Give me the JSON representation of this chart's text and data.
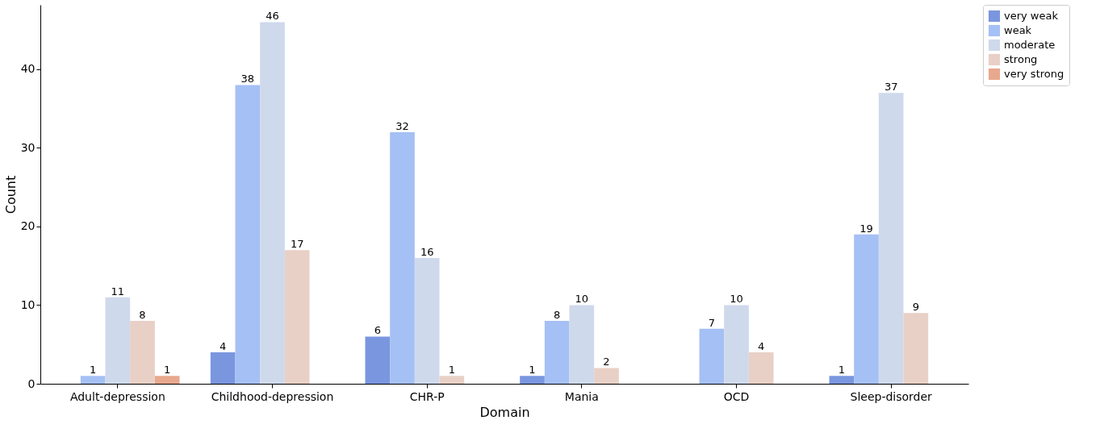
{
  "chart_data": {
    "type": "bar",
    "xlabel": "Domain",
    "ylabel": "Count",
    "categories": [
      "Adult-depression",
      "Childhood-depression",
      "CHR-P",
      "Mania",
      "OCD",
      "Sleep-disorder"
    ],
    "series": [
      {
        "name": "very weak",
        "color": "#7a96de",
        "values": [
          null,
          4,
          6,
          1,
          null,
          1
        ]
      },
      {
        "name": "weak",
        "color": "#a5c0f4",
        "values": [
          1,
          38,
          32,
          8,
          7,
          19
        ]
      },
      {
        "name": "moderate",
        "color": "#cfd9ec",
        "values": [
          11,
          46,
          16,
          10,
          10,
          37
        ]
      },
      {
        "name": "strong",
        "color": "#e8d0c6",
        "values": [
          8,
          17,
          1,
          2,
          4,
          9
        ]
      },
      {
        "name": "very strong",
        "color": "#e8a88e",
        "values": [
          1,
          null,
          null,
          null,
          null,
          null
        ]
      }
    ],
    "ylim": [
      0,
      48.2
    ],
    "yticks": [
      0,
      10,
      20,
      30,
      40
    ],
    "grid": false,
    "legend": "right",
    "data_labels": true
  }
}
